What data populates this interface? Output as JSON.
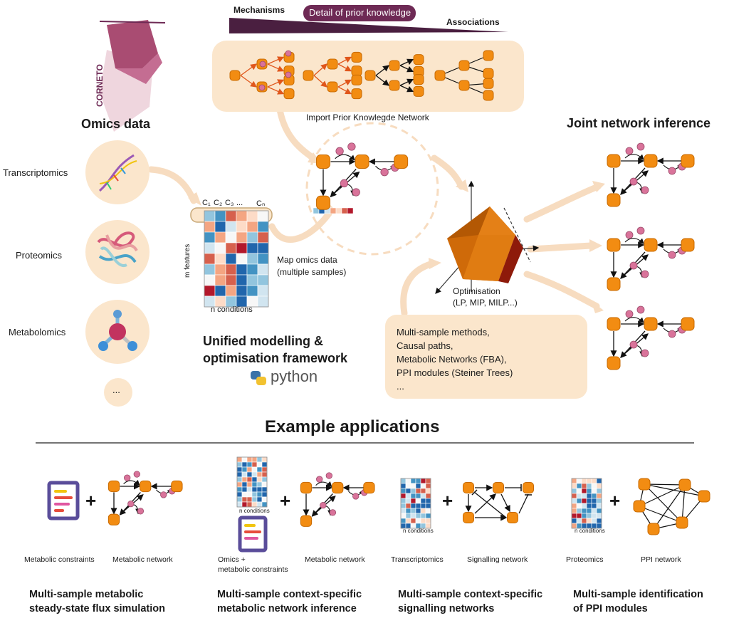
{
  "top": {
    "mechanisms_label": "Mechanisms",
    "detail_label": "Detail of prior knowledge",
    "associations_label": "Associations",
    "prior_network_caption": "Import Prior Knowlegde Network"
  },
  "logo": {
    "text": "CORNETO"
  },
  "omics": {
    "title": "Omics data",
    "items": [
      "Transcriptomics",
      "Proteomics",
      "Metabolomics"
    ],
    "more": "..."
  },
  "matrix": {
    "col_headers": [
      "C₁",
      "C₂",
      "C₃",
      "...",
      "Cₙ"
    ],
    "row_label": "m features",
    "col_label": "n conditions"
  },
  "map_label": {
    "line1": "Map omics data",
    "line2": "(multiple samples)"
  },
  "optimisation": {
    "line1": "Optimisation",
    "line2": "(LP, MIP, MILP...)"
  },
  "methods": [
    "Multi-sample methods,",
    "Causal paths,",
    "Metabolic Networks (FBA),",
    "PPI modules (Steiner Trees)",
    "..."
  ],
  "framework": {
    "line1": "Unified modelling &",
    "line2": "optimisation framework",
    "python": "python"
  },
  "joint": {
    "title": "Joint network inference"
  },
  "applications": {
    "title": "Example applications",
    "items": [
      {
        "left_caption": "Metabolic constraints",
        "right_caption": "Metabolic network",
        "title_line1": "Multi-sample metabolic",
        "title_line2": "steady-state flux simulation"
      },
      {
        "left_caption_line1": "Omics +",
        "left_caption_line2": "metabolic constraints",
        "right_caption": "Metabolic network",
        "title_line1": "Multi-sample context-specific",
        "title_line2": "metabolic network inference"
      },
      {
        "left_caption": "Transcriptomics",
        "right_caption": "Signalling network",
        "title_line1": "Multi-sample context-specific",
        "title_line2": "signalling networks"
      },
      {
        "left_caption": "Proteomics",
        "right_caption": "PPI network",
        "title_line1": "Multi-sample identification",
        "title_line2": "of PPI modules"
      }
    ]
  },
  "plus_sign": "+",
  "colors": {
    "node": "#f28c12",
    "node_stroke": "#c86a00",
    "metabolite": "#d9739a",
    "peach": "#fbe6cc",
    "arrow_peach": "#f7dcc0",
    "wedge": "#4a1f40",
    "badge": "#6e2a55"
  }
}
